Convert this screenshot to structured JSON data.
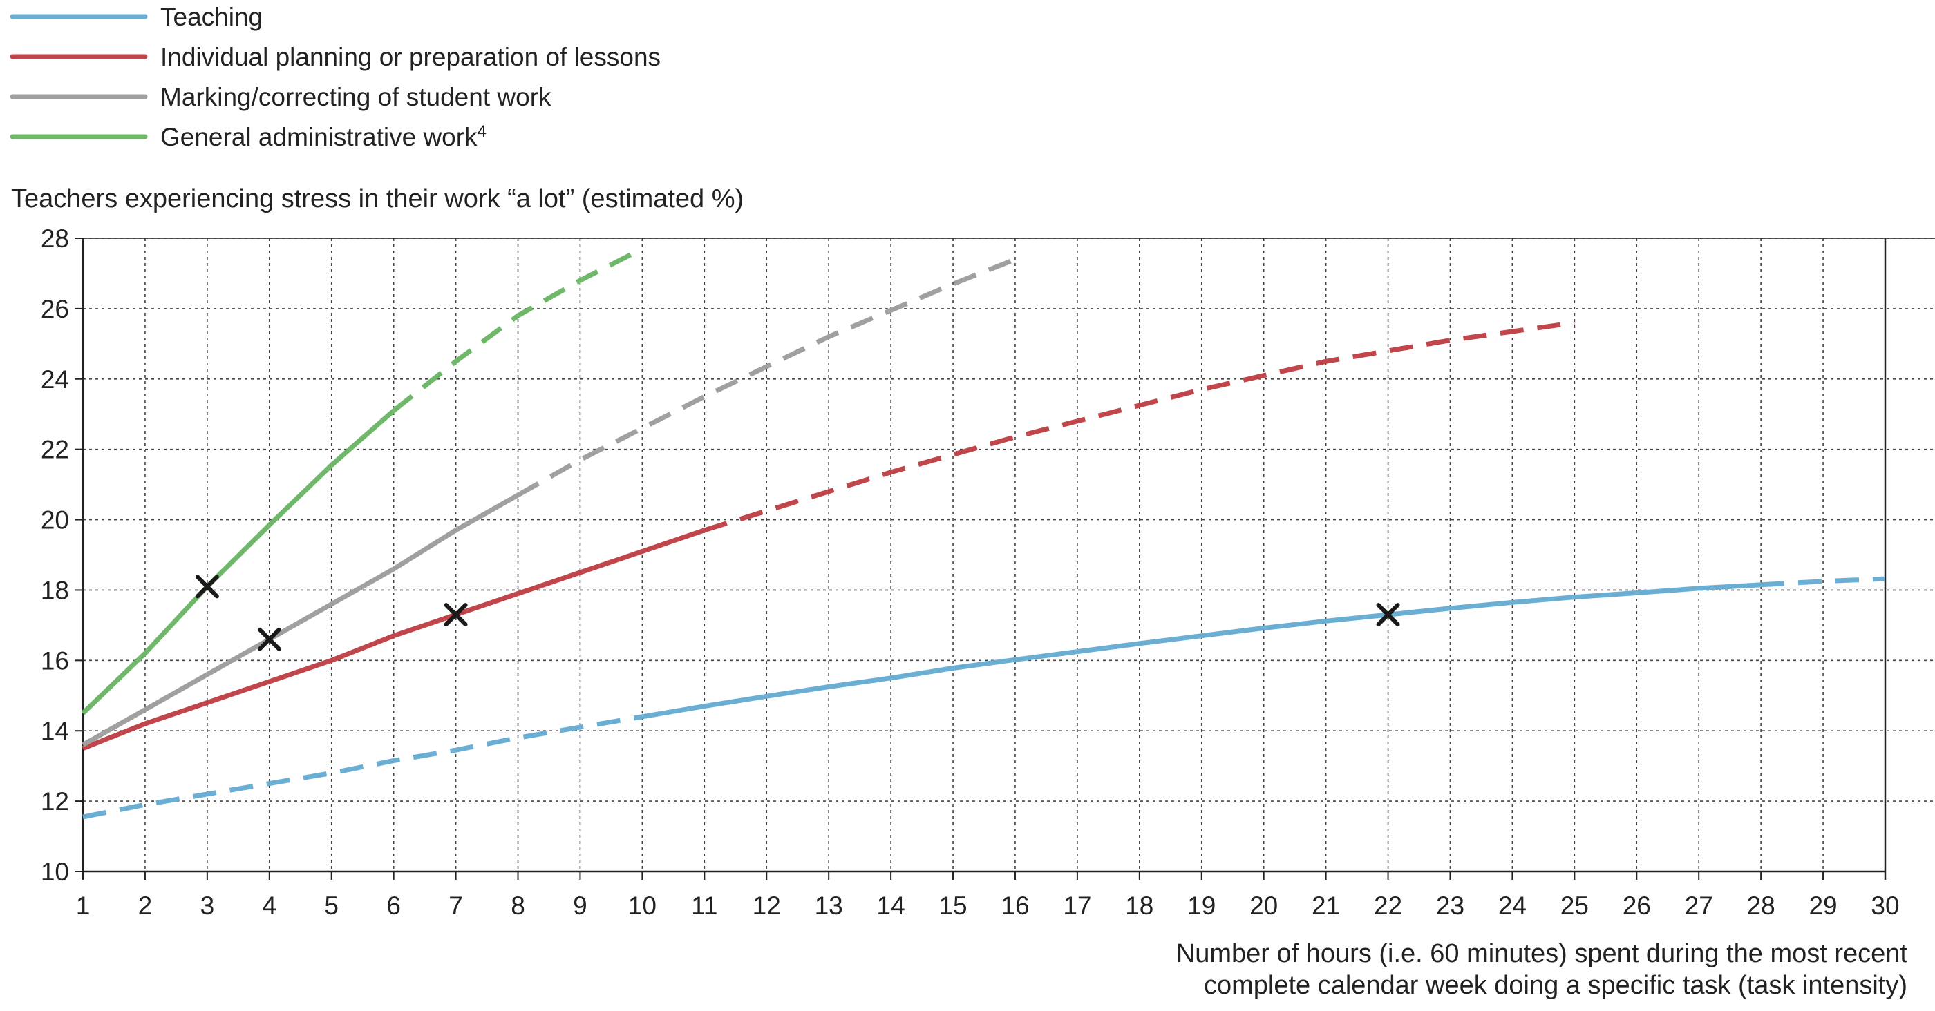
{
  "chart_data": {
    "type": "line",
    "ylabel": "Teachers experiencing stress in their work “a lot” (estimated %)",
    "xlabel_lines": [
      "Number of hours (i.e. 60 minutes) spent during the most recent",
      "complete calendar week doing a specific task (task intensity)"
    ],
    "xlim": [
      1,
      30
    ],
    "ylim": [
      10,
      28
    ],
    "x_ticks": [
      1,
      2,
      3,
      4,
      5,
      6,
      7,
      8,
      9,
      10,
      11,
      12,
      13,
      14,
      15,
      16,
      17,
      18,
      19,
      20,
      21,
      22,
      23,
      24,
      25,
      26,
      27,
      28,
      29,
      30
    ],
    "y_ticks": [
      10,
      12,
      14,
      16,
      18,
      20,
      22,
      24,
      26,
      28
    ],
    "grid": true,
    "legend_position": "top-left",
    "series": [
      {
        "name": "Teaching",
        "name_superscript": "",
        "color": "#6aafd3",
        "x": [
          1,
          2,
          3,
          4,
          5,
          6,
          7,
          8,
          9,
          10,
          11,
          12,
          13,
          14,
          15,
          16,
          17,
          18,
          19,
          20,
          21,
          22,
          23,
          24,
          25,
          26,
          27,
          28,
          29,
          30
        ],
        "y": [
          11.55,
          11.9,
          12.2,
          12.5,
          12.8,
          13.15,
          13.45,
          13.8,
          14.1,
          14.4,
          14.7,
          14.98,
          15.25,
          15.5,
          15.78,
          16.02,
          16.25,
          16.48,
          16.7,
          16.92,
          17.12,
          17.3,
          17.48,
          17.65,
          17.8,
          17.92,
          18.05,
          18.15,
          18.25,
          18.32
        ],
        "solid_range": [
          10,
          28
        ],
        "marker_x": 22,
        "marker_y": 17.3
      },
      {
        "name": "Individual planning or preparation of lessons",
        "name_superscript": "",
        "color": "#c1464b",
        "x": [
          1,
          2,
          3,
          4,
          5,
          6,
          7,
          8,
          9,
          10,
          11,
          12,
          13,
          14,
          15,
          16,
          17,
          18,
          19,
          20,
          21,
          22,
          23,
          24,
          25
        ],
        "y": [
          13.5,
          14.2,
          14.8,
          15.4,
          16.0,
          16.7,
          17.3,
          17.9,
          18.5,
          19.1,
          19.7,
          20.25,
          20.8,
          21.35,
          21.85,
          22.35,
          22.8,
          23.25,
          23.7,
          24.1,
          24.5,
          24.8,
          25.1,
          25.35,
          25.6
        ],
        "solid_range": [
          1.3,
          11
        ],
        "marker_x": 7,
        "marker_y": 17.3
      },
      {
        "name": "Marking/correcting of student work",
        "name_superscript": "",
        "color": "#a0a0a0",
        "x": [
          1,
          2,
          3,
          4,
          5,
          6,
          7,
          8,
          9,
          10,
          11,
          12,
          13,
          14,
          15,
          16
        ],
        "y": [
          13.6,
          14.6,
          15.6,
          16.6,
          17.6,
          18.6,
          19.7,
          20.7,
          21.7,
          22.6,
          23.5,
          24.35,
          25.2,
          25.95,
          26.7,
          27.4
        ],
        "solid_range": [
          1,
          8
        ],
        "marker_x": 4,
        "marker_y": 16.6
      },
      {
        "name": "General administrative work",
        "name_superscript": "4",
        "color": "#6fb86a",
        "x": [
          1,
          2,
          3,
          4,
          5,
          6,
          7,
          8,
          9,
          10
        ],
        "y": [
          14.5,
          16.2,
          18.1,
          19.85,
          21.55,
          23.1,
          24.5,
          25.8,
          26.8,
          27.7
        ],
        "solid_range": [
          1,
          6
        ],
        "marker_x": 3,
        "marker_y": 18.1
      }
    ]
  }
}
